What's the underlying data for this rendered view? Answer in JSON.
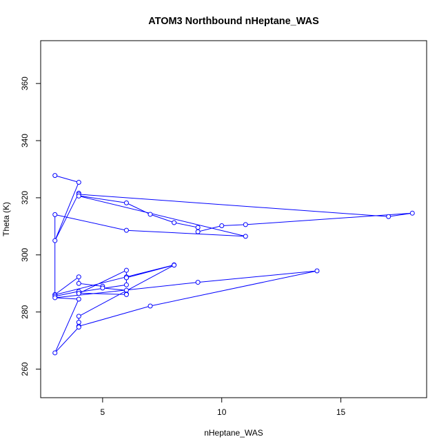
{
  "chart_data": {
    "type": "line",
    "title": "ATOM3 Northbound nHeptane_WAS",
    "xlabel": "nHeptane_WAS",
    "ylabel": "Theta (K)",
    "xlim": [
      2.4,
      18.6
    ],
    "ylim": [
      250,
      375
    ],
    "x_ticks": [
      5,
      10,
      15
    ],
    "y_ticks": [
      260,
      280,
      300,
      320,
      340,
      360
    ],
    "grid": false,
    "legend": "none",
    "color": "#0000ff",
    "markers": "open-circle",
    "series": [
      {
        "x": [
          3,
          4,
          3,
          4,
          4,
          6,
          7,
          8,
          9,
          9,
          10,
          11,
          18,
          17,
          4,
          4,
          11,
          6,
          3,
          3,
          4,
          4,
          5,
          5,
          6,
          6,
          6,
          4,
          4,
          6,
          6,
          8,
          3,
          3,
          4,
          4,
          6,
          6,
          6,
          8,
          4,
          4,
          4,
          7,
          14,
          9,
          3,
          4,
          3,
          4
        ],
        "y": [
          327.8,
          325.4,
          305.0,
          321.6,
          320.7,
          318.2,
          314.2,
          311.3,
          309.6,
          308.1,
          310.2,
          310.6,
          314.6,
          313.4,
          321.2,
          320.6,
          306.5,
          308.6,
          314.1,
          286.1,
          292.3,
          290.0,
          289.0,
          288.4,
          287.6,
          286.3,
          286.1,
          286.6,
          287.0,
          289.5,
          292.0,
          296.5,
          286.0,
          285.5,
          287.2,
          286.5,
          294.6,
          292.3,
          292.0,
          296.4,
          278.5,
          276.4,
          275.0,
          282.1,
          294.4,
          290.4,
          285.0,
          284.5,
          265.7,
          274.7
        ]
      }
    ]
  }
}
